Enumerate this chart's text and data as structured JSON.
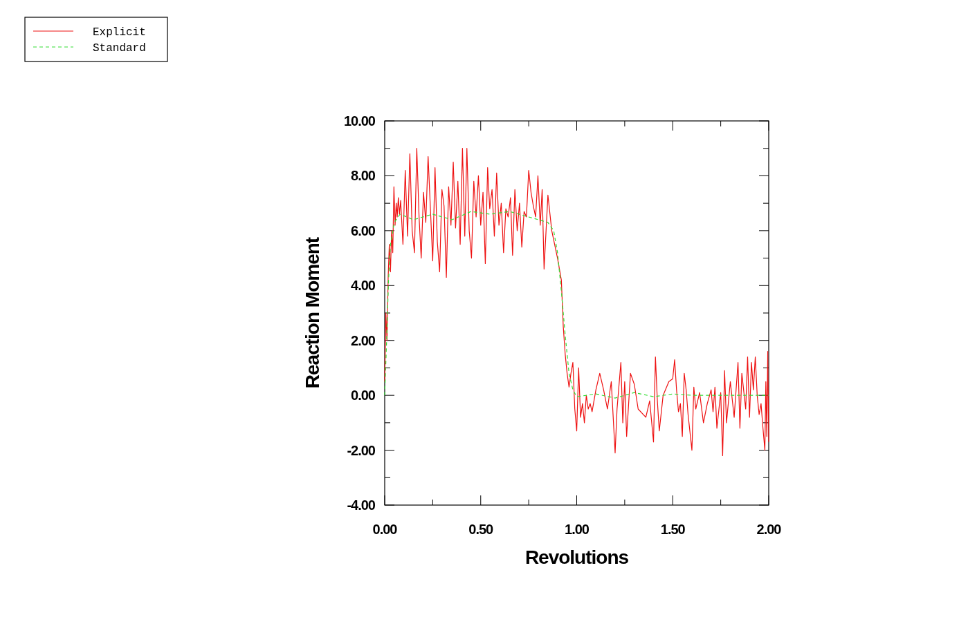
{
  "chart_data": {
    "type": "line",
    "xlabel": "Revolutions",
    "ylabel": "Reaction Moment",
    "xlim": [
      0,
      2
    ],
    "ylim": [
      -4,
      10
    ],
    "xticks": [
      {
        "value": 0,
        "label": "0.00"
      },
      {
        "value": 0.25,
        "label": null
      },
      {
        "value": 0.5,
        "label": "0.50"
      },
      {
        "value": 0.75,
        "label": null
      },
      {
        "value": 1,
        "label": "1.00"
      },
      {
        "value": 1.25,
        "label": null
      },
      {
        "value": 1.5,
        "label": "1.50"
      },
      {
        "value": 1.75,
        "label": null
      },
      {
        "value": 2,
        "label": "2.00"
      }
    ],
    "yticks": [
      {
        "value": -4,
        "label": "-4.00"
      },
      {
        "value": -3,
        "label": null
      },
      {
        "value": -2,
        "label": "-2.00"
      },
      {
        "value": -1,
        "label": null
      },
      {
        "value": 0,
        "label": "0.00"
      },
      {
        "value": 1,
        "label": null
      },
      {
        "value": 2,
        "label": "2.00"
      },
      {
        "value": 3,
        "label": null
      },
      {
        "value": 4,
        "label": "4.00"
      },
      {
        "value": 5,
        "label": null
      },
      {
        "value": 6,
        "label": "6.00"
      },
      {
        "value": 7,
        "label": null
      },
      {
        "value": 8,
        "label": "8.00"
      },
      {
        "value": 9,
        "label": null
      },
      {
        "value": 10,
        "label": "10.00"
      }
    ],
    "grid": false,
    "legend": "top left",
    "marker": "none",
    "series": [
      {
        "name": "Explicit",
        "color": "#ee1111",
        "line_style": "solid",
        "x": [
          0,
          0.006,
          0.012,
          0.018,
          0.024,
          0.03,
          0.036,
          0.042,
          0.048,
          0.054,
          0.06,
          0.065,
          0.071,
          0.077,
          0.083,
          0.095,
          0.107,
          0.119,
          0.131,
          0.143,
          0.155,
          0.167,
          0.179,
          0.19,
          0.202,
          0.214,
          0.226,
          0.238,
          0.25,
          0.262,
          0.274,
          0.286,
          0.298,
          0.309,
          0.321,
          0.333,
          0.345,
          0.357,
          0.369,
          0.381,
          0.393,
          0.405,
          0.417,
          0.428,
          0.44,
          0.452,
          0.464,
          0.476,
          0.488,
          0.5,
          0.512,
          0.524,
          0.536,
          0.547,
          0.559,
          0.571,
          0.583,
          0.595,
          0.607,
          0.619,
          0.631,
          0.643,
          0.655,
          0.666,
          0.678,
          0.69,
          0.702,
          0.714,
          0.726,
          0.738,
          0.75,
          0.762,
          0.774,
          0.786,
          0.798,
          0.81,
          0.82,
          0.83,
          0.85,
          0.87,
          0.9,
          0.92,
          0.93,
          0.94,
          0.95,
          0.96,
          0.97,
          0.98,
          0.99,
          1.0,
          1.01,
          1.02,
          1.03,
          1.04,
          1.05,
          1.06,
          1.07,
          1.08,
          1.1,
          1.12,
          1.14,
          1.16,
          1.18,
          1.2,
          1.21,
          1.23,
          1.24,
          1.25,
          1.26,
          1.28,
          1.3,
          1.32,
          1.36,
          1.38,
          1.4,
          1.41,
          1.42,
          1.43,
          1.45,
          1.48,
          1.5,
          1.51,
          1.52,
          1.53,
          1.54,
          1.55,
          1.56,
          1.57,
          1.58,
          1.6,
          1.61,
          1.62,
          1.64,
          1.66,
          1.68,
          1.7,
          1.71,
          1.72,
          1.73,
          1.75,
          1.76,
          1.77,
          1.78,
          1.8,
          1.82,
          1.84,
          1.85,
          1.86,
          1.88,
          1.89,
          1.9,
          1.91,
          1.92,
          1.93,
          1.94,
          1.95,
          1.96,
          1.97,
          1.98,
          1.985,
          1.99,
          1.995,
          2.0
        ],
        "values": [
          0.5,
          3,
          2,
          4.3,
          5.5,
          4.5,
          6,
          5.2,
          7.6,
          6.2,
          7,
          6.5,
          7.2,
          6.6,
          7.1,
          5.5,
          8.2,
          5.8,
          8.8,
          6.0,
          5.2,
          9.0,
          6.5,
          5.0,
          7.4,
          6.3,
          8.7,
          6.8,
          4.9,
          8.3,
          5.6,
          4.5,
          7.5,
          6.9,
          4.3,
          7.6,
          6.2,
          8.5,
          6.1,
          7.8,
          5.5,
          9.0,
          5.8,
          9.0,
          6.0,
          5.0,
          7.8,
          6.5,
          8.0,
          6.2,
          7.4,
          4.8,
          8.3,
          6.8,
          7.5,
          5.8,
          8.1,
          6.2,
          7.0,
          5.2,
          6.8,
          6.5,
          7.2,
          5.1,
          7.5,
          6.0,
          7.0,
          5.4,
          6.7,
          6.5,
          8.2,
          7.4,
          6.9,
          6.5,
          8.0,
          6.2,
          7.5,
          4.6,
          7.3,
          6.0,
          5.0,
          4.2,
          2.5,
          1.5,
          0.8,
          0.3,
          0.8,
          1.2,
          -0.5,
          -1.3,
          1.0,
          -0.8,
          -0.3,
          -1.0,
          0.0,
          -0.5,
          -0.3,
          -0.6,
          0.2,
          0.8,
          0.2,
          -0.5,
          0.5,
          -2.1,
          -0.5,
          1.2,
          -1.0,
          0.5,
          -1.5,
          0.8,
          0.4,
          -0.5,
          -0.8,
          -0.2,
          -1.7,
          1.4,
          -0.2,
          -1.3,
          0.0,
          0.5,
          0.6,
          1.3,
          0.2,
          -0.6,
          -0.3,
          -1.5,
          0.8,
          0.2,
          -0.7,
          -2.0,
          0.3,
          -0.5,
          0.1,
          -1.0,
          -0.3,
          0.2,
          -0.6,
          0.3,
          -1.2,
          0.1,
          -2.2,
          0.9,
          -1.0,
          0.5,
          -0.8,
          1.2,
          -1.2,
          0.8,
          -0.5,
          1.4,
          -0.8,
          1.2,
          0.2,
          1.4,
          0.0,
          -0.7,
          -0.3,
          -1.2,
          -2.0,
          0.5,
          -1.5,
          1.6,
          -1.7
        ]
      },
      {
        "name": "Standard",
        "color": "#33dd33",
        "line_style": "dashed",
        "x": [
          0,
          0.01,
          0.02,
          0.03,
          0.05,
          0.08,
          0.15,
          0.25,
          0.35,
          0.45,
          0.55,
          0.65,
          0.75,
          0.85,
          0.88,
          0.9,
          0.92,
          0.94,
          0.96,
          0.98,
          1.0,
          1.1,
          1.2,
          1.3,
          1.4,
          1.5,
          1.6,
          1.7,
          1.8,
          1.9,
          2.0
        ],
        "values": [
          0,
          2,
          4.2,
          5.5,
          6.3,
          6.6,
          6.4,
          6.6,
          6.4,
          6.7,
          6.6,
          6.7,
          6.5,
          6.3,
          6.0,
          5.2,
          3.8,
          2.2,
          0.8,
          0.2,
          -0.05,
          0.05,
          -0.1,
          0.1,
          -0.05,
          0.05,
          0,
          0,
          0,
          0,
          0
        ]
      }
    ]
  }
}
